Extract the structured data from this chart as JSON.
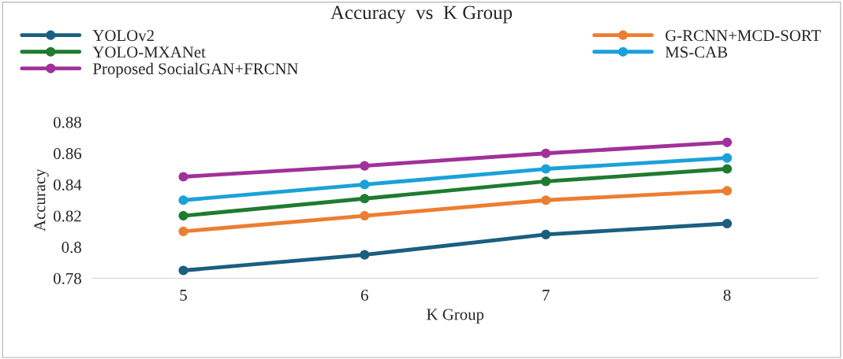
{
  "chart_data": {
    "type": "line",
    "title": "Accuracy  vs  K Group",
    "xlabel": "K Group",
    "ylabel": "Accuracy",
    "categories": [
      "5",
      "6",
      "7",
      "8"
    ],
    "series": [
      {
        "name": "YOLOv2",
        "color": "#1b5e80",
        "values": [
          0.785,
          0.795,
          0.808,
          0.815
        ]
      },
      {
        "name": "G-RCNN+MCD-SORT",
        "color": "#ed7d31",
        "values": [
          0.81,
          0.82,
          0.83,
          0.836
        ]
      },
      {
        "name": "YOLO-MXANet",
        "color": "#1e7b30",
        "values": [
          0.82,
          0.831,
          0.842,
          0.85
        ]
      },
      {
        "name": "MS-CAB",
        "color": "#1ba1d9",
        "values": [
          0.83,
          0.84,
          0.85,
          0.857
        ]
      },
      {
        "name": "Proposed SocialGAN+FRCNN",
        "color": "#a0319a",
        "values": [
          0.845,
          0.852,
          0.86,
          0.867
        ]
      }
    ],
    "ylim": [
      0.78,
      0.88
    ],
    "yticks": [
      0.78,
      0.8,
      0.82,
      0.84,
      0.86,
      0.88
    ],
    "grid": false,
    "legend": "top",
    "marker": "circle",
    "line_style": "solid"
  }
}
